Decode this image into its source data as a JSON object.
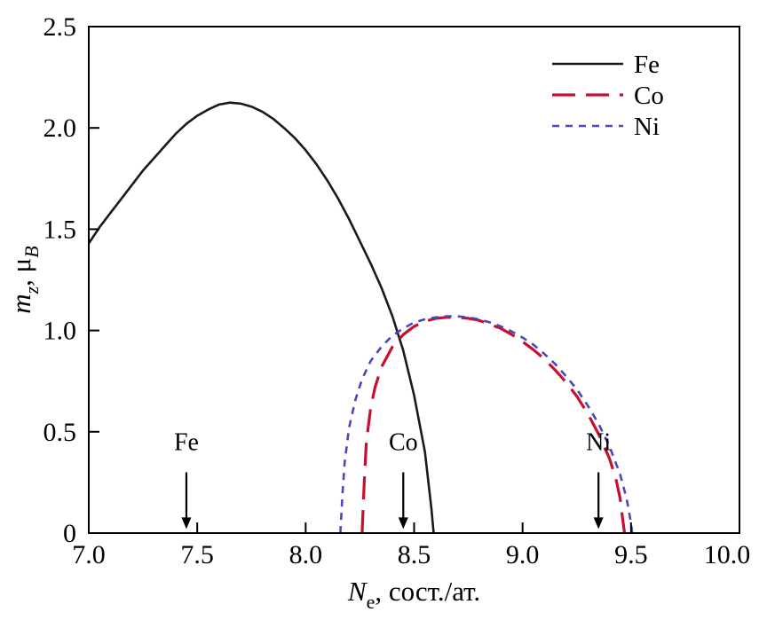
{
  "figure": {
    "background": "#ffffff",
    "frame_color": "#000000"
  },
  "chart_data": {
    "type": "line",
    "title": "",
    "xlabel_parts": [
      {
        "t": "N",
        "italic": true,
        "sub": false
      },
      {
        "t": "e",
        "italic": false,
        "sub": true
      },
      {
        "t": ", сост./ат.",
        "italic": false,
        "sub": false
      }
    ],
    "ylabel_parts": [
      {
        "t": "m",
        "italic": true,
        "sub": false
      },
      {
        "t": "z",
        "italic": true,
        "sub": true
      },
      {
        "t": ", μ",
        "italic": false,
        "sub": false
      },
      {
        "t": "B",
        "italic": true,
        "sub": true
      }
    ],
    "xlim": [
      7.0,
      10.0
    ],
    "ylim": [
      0,
      2.5
    ],
    "grid": false,
    "xticks": {
      "values": [
        7.0,
        7.5,
        8.0,
        8.5,
        9.0,
        9.5,
        10.0
      ],
      "labels": [
        "7.0",
        "7.5",
        "8.0",
        "8.5",
        "9.0",
        "9.5",
        "10.0"
      ]
    },
    "yticks": {
      "values": [
        0,
        0.5,
        1.0,
        1.5,
        2.0,
        2.5
      ],
      "labels": [
        "0",
        "0.5",
        "1.0",
        "1.5",
        "2.0",
        "2.5"
      ]
    },
    "legend": {
      "position": "top-right",
      "entries": [
        {
          "label": "Fe",
          "color": "#1a1a1a",
          "dash": "solid"
        },
        {
          "label": "Co",
          "color": "#c8102e",
          "dash": "long-dash"
        },
        {
          "label": "Ni",
          "color": "#4848bb",
          "dash": "short-dash"
        }
      ]
    },
    "series": [
      {
        "name": "Fe",
        "color": "#1a1a1a",
        "dash": "solid",
        "width": 2.6,
        "points": [
          [
            7.0,
            1.43
          ],
          [
            7.05,
            1.51
          ],
          [
            7.1,
            1.58
          ],
          [
            7.15,
            1.65
          ],
          [
            7.2,
            1.72
          ],
          [
            7.25,
            1.79
          ],
          [
            7.3,
            1.85
          ],
          [
            7.35,
            1.91
          ],
          [
            7.4,
            1.97
          ],
          [
            7.45,
            2.02
          ],
          [
            7.5,
            2.06
          ],
          [
            7.55,
            2.09
          ],
          [
            7.6,
            2.115
          ],
          [
            7.65,
            2.125
          ],
          [
            7.7,
            2.12
          ],
          [
            7.75,
            2.105
          ],
          [
            7.8,
            2.08
          ],
          [
            7.85,
            2.045
          ],
          [
            7.9,
            2.0
          ],
          [
            7.95,
            1.95
          ],
          [
            8.0,
            1.89
          ],
          [
            8.05,
            1.82
          ],
          [
            8.1,
            1.74
          ],
          [
            8.15,
            1.65
          ],
          [
            8.2,
            1.55
          ],
          [
            8.25,
            1.44
          ],
          [
            8.3,
            1.33
          ],
          [
            8.35,
            1.21
          ],
          [
            8.4,
            1.07
          ],
          [
            8.45,
            0.9
          ],
          [
            8.5,
            0.68
          ],
          [
            8.55,
            0.4
          ],
          [
            8.58,
            0.12
          ],
          [
            8.59,
            0.0
          ]
        ]
      },
      {
        "name": "Co",
        "color": "#c8102e",
        "dash": "long-dash",
        "width": 3.2,
        "points": [
          [
            8.26,
            0.0
          ],
          [
            8.27,
            0.25
          ],
          [
            8.28,
            0.45
          ],
          [
            8.3,
            0.62
          ],
          [
            8.32,
            0.72
          ],
          [
            8.35,
            0.82
          ],
          [
            8.4,
            0.92
          ],
          [
            8.45,
            0.98
          ],
          [
            8.5,
            1.02
          ],
          [
            8.55,
            1.045
          ],
          [
            8.6,
            1.06
          ],
          [
            8.65,
            1.065
          ],
          [
            8.7,
            1.065
          ],
          [
            8.75,
            1.06
          ],
          [
            8.8,
            1.05
          ],
          [
            8.85,
            1.03
          ],
          [
            8.9,
            1.01
          ],
          [
            8.95,
            0.98
          ],
          [
            9.0,
            0.945
          ],
          [
            9.05,
            0.905
          ],
          [
            9.1,
            0.86
          ],
          [
            9.15,
            0.805
          ],
          [
            9.2,
            0.745
          ],
          [
            9.25,
            0.675
          ],
          [
            9.3,
            0.59
          ],
          [
            9.35,
            0.49
          ],
          [
            9.4,
            0.37
          ],
          [
            9.43,
            0.27
          ],
          [
            9.45,
            0.17
          ],
          [
            9.46,
            0.08
          ],
          [
            9.47,
            0.0
          ]
        ]
      },
      {
        "name": "Ni",
        "color": "#4848bb",
        "dash": "short-dash",
        "width": 2.6,
        "points": [
          [
            8.16,
            0.0
          ],
          [
            8.17,
            0.2
          ],
          [
            8.18,
            0.35
          ],
          [
            8.2,
            0.52
          ],
          [
            8.23,
            0.66
          ],
          [
            8.26,
            0.76
          ],
          [
            8.3,
            0.85
          ],
          [
            8.35,
            0.92
          ],
          [
            8.4,
            0.975
          ],
          [
            8.45,
            1.01
          ],
          [
            8.5,
            1.04
          ],
          [
            8.55,
            1.055
          ],
          [
            8.6,
            1.065
          ],
          [
            8.65,
            1.07
          ],
          [
            8.7,
            1.07
          ],
          [
            8.75,
            1.065
          ],
          [
            8.8,
            1.055
          ],
          [
            8.85,
            1.04
          ],
          [
            8.9,
            1.02
          ],
          [
            8.95,
            0.995
          ],
          [
            9.0,
            0.965
          ],
          [
            9.05,
            0.93
          ],
          [
            9.1,
            0.885
          ],
          [
            9.15,
            0.835
          ],
          [
            9.2,
            0.775
          ],
          [
            9.25,
            0.71
          ],
          [
            9.3,
            0.63
          ],
          [
            9.35,
            0.54
          ],
          [
            9.4,
            0.43
          ],
          [
            9.45,
            0.29
          ],
          [
            9.48,
            0.17
          ],
          [
            9.5,
            0.05
          ],
          [
            9.505,
            0.0
          ]
        ]
      }
    ],
    "annotations": [
      {
        "label": "Fe",
        "x": 7.45,
        "arrow_from": 0.3,
        "arrow_to": 0.02,
        "label_y": 0.41
      },
      {
        "label": "Co",
        "x": 8.45,
        "arrow_from": 0.3,
        "arrow_to": 0.02,
        "label_y": 0.41
      },
      {
        "label": "Ni",
        "x": 9.35,
        "arrow_from": 0.3,
        "arrow_to": 0.02,
        "label_y": 0.41
      }
    ]
  }
}
